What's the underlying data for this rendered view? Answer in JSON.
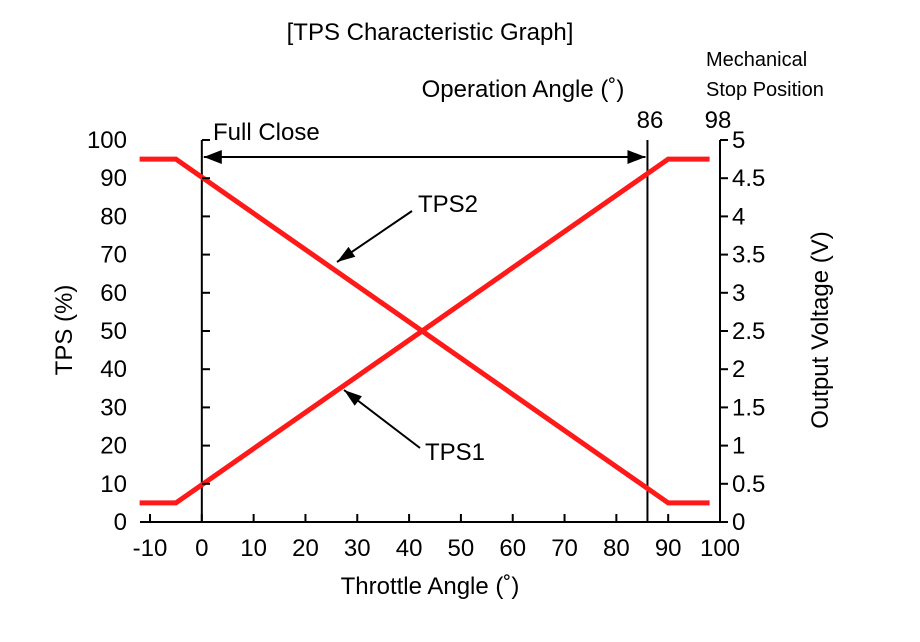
{
  "chart_data": {
    "type": "line",
    "title": "[TPS Characteristic Graph]",
    "xlabel": "Throttle Angle (˚)",
    "ylabel": "TPS (%)",
    "y2label": "Output Voltage (V)",
    "xlim": [
      -10,
      100
    ],
    "ylim": [
      0,
      100
    ],
    "y2lim": [
      0,
      5
    ],
    "x_ticks": [
      -10,
      0,
      10,
      20,
      30,
      40,
      50,
      60,
      70,
      80,
      90,
      100
    ],
    "y_ticks": [
      0,
      10,
      20,
      30,
      40,
      50,
      60,
      70,
      80,
      90,
      100
    ],
    "y2_ticks": [
      "0",
      "0.5",
      "1",
      "1.5",
      "2",
      "2.5",
      "3",
      "3.5",
      "4",
      "4.5",
      "5"
    ],
    "series": [
      {
        "name": "TPS1",
        "x": [
          -12,
          -5,
          90,
          98
        ],
        "y": [
          5,
          5,
          95,
          95
        ]
      },
      {
        "name": "TPS2",
        "x": [
          -12,
          -5,
          90,
          98
        ],
        "y": [
          95,
          95,
          5,
          5
        ]
      }
    ],
    "vertical_lines": [
      0,
      86
    ],
    "annotations": {
      "full_close": "Full Close",
      "operation_angle": "Operation Angle (˚)",
      "operation_angle_value": "86",
      "mechanical_stop_line1": "Mechanical",
      "mechanical_stop_line2": "Stop Position",
      "mechanical_stop_value": "98",
      "tps1_label": "TPS1",
      "tps2_label": "TPS2"
    },
    "colors": {
      "series": "#ff1a1a",
      "axis": "#000000"
    }
  }
}
